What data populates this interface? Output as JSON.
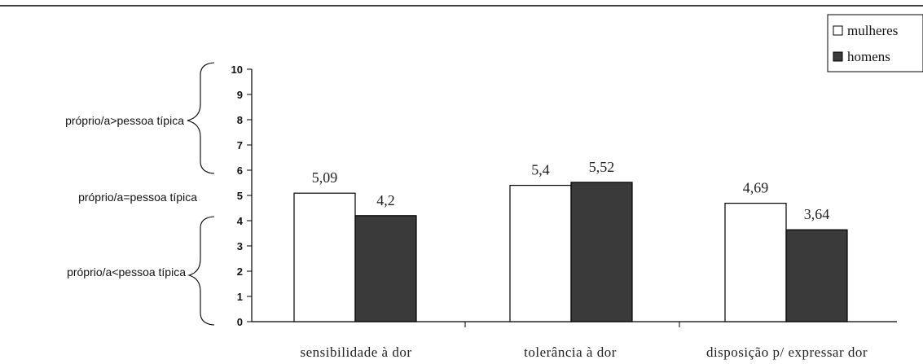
{
  "chart_data": {
    "type": "bar",
    "categories": [
      "sensibilidade à dor",
      "tolerância à dor",
      "disposição p/ expressar dor"
    ],
    "series": [
      {
        "name": "mulheres",
        "values": [
          5.09,
          5.4,
          4.69
        ],
        "labels": [
          "5,09",
          "5,4",
          "4,69"
        ],
        "color": "#ffffff"
      },
      {
        "name": "homens",
        "values": [
          4.2,
          5.52,
          3.64
        ],
        "labels": [
          "4,2",
          "5,52",
          "3,64"
        ],
        "color": "#3a3a3a"
      }
    ],
    "ylim": [
      0,
      10
    ],
    "yticks": [
      "0",
      "1",
      "2",
      "3",
      "4",
      "5",
      "6",
      "7",
      "8",
      "9",
      "10"
    ],
    "annotations": {
      "above": "próprio/a>pessoa típica",
      "equal": "próprio/a=pessoa típica",
      "below": "próprio/a<pessoa típica"
    },
    "legend_position": "top-right",
    "grid": false
  }
}
